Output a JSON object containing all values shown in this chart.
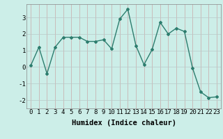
{
  "x": [
    0,
    1,
    2,
    3,
    4,
    5,
    6,
    7,
    8,
    9,
    10,
    11,
    12,
    13,
    14,
    15,
    16,
    17,
    18,
    19,
    20,
    21,
    22,
    23
  ],
  "y": [
    0.1,
    1.2,
    -0.4,
    1.2,
    1.8,
    1.8,
    1.8,
    1.55,
    1.55,
    1.65,
    1.1,
    2.9,
    3.5,
    1.3,
    0.15,
    1.05,
    2.7,
    2.0,
    2.35,
    2.15,
    -0.05,
    -1.5,
    -1.85,
    -1.8
  ],
  "line_color": "#2d7d6e",
  "marker": "D",
  "marker_size": 2,
  "background_color": "#cceee8",
  "grid_color_v": "#c8a8a8",
  "grid_color_h": "#b8c8c8",
  "xlabel": "Humidex (Indice chaleur)",
  "ylabel": "",
  "xlim": [
    -0.5,
    23.5
  ],
  "ylim": [
    -2.5,
    3.8
  ],
  "yticks": [
    -2,
    -1,
    0,
    1,
    2,
    3
  ],
  "xticks": [
    0,
    1,
    2,
    3,
    4,
    5,
    6,
    7,
    8,
    9,
    10,
    11,
    12,
    13,
    14,
    15,
    16,
    17,
    18,
    19,
    20,
    21,
    22,
    23
  ],
  "xlabel_fontsize": 7.5,
  "tick_fontsize": 6.5
}
